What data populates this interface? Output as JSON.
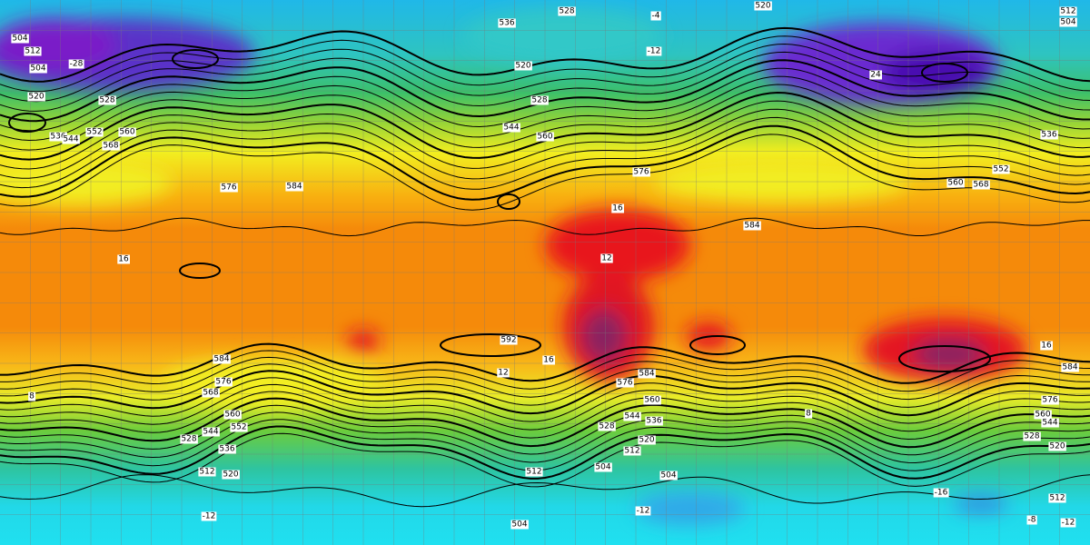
{
  "contour_labels": [
    "504",
    "512",
    "504",
    "520",
    "528",
    "536",
    "544",
    "552",
    "560",
    "568",
    "576",
    "584",
    "528",
    "536",
    "520",
    "528",
    "544",
    "560",
    "576",
    "584",
    "536",
    "552",
    "560",
    "568",
    "512",
    "504",
    "592",
    "584",
    "576",
    "568",
    "560",
    "552",
    "544",
    "528",
    "536",
    "512",
    "520",
    "576",
    "584",
    "560",
    "544",
    "536",
    "528",
    "520",
    "512",
    "504",
    "504",
    "512",
    "504",
    "576",
    "560",
    "544",
    "528",
    "520",
    "512",
    "-16",
    "-12",
    "-12",
    "-12",
    "-8",
    "16",
    "16",
    "12",
    "16",
    "12",
    "16",
    "8",
    "8",
    "520",
    "-4",
    "-12",
    "24",
    "-28",
    "584"
  ]
}
